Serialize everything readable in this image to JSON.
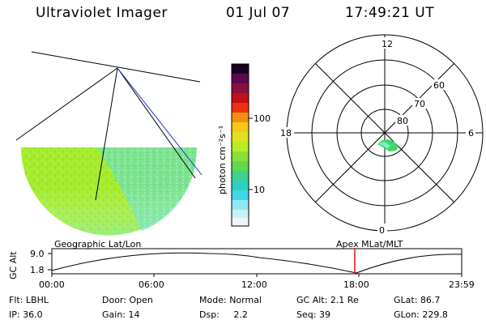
{
  "header": {
    "title": "Ultraviolet Imager",
    "date": "01 Jul 07",
    "time": "17:49:21 UT"
  },
  "colorbar": {
    "unit_label": "photon cm⁻²s⁻¹",
    "ticks": [
      "100",
      "10"
    ]
  },
  "polar_plot": {
    "mlt_labels": {
      "top": "12",
      "bottom": "0",
      "left": "18",
      "right": "6"
    },
    "lat_labels": [
      "60",
      "70",
      "80"
    ]
  },
  "timeline": {
    "left_label": "Geographic Lat/Lon",
    "right_label": "Apex MLat/MLT",
    "y_axis_label": "GC Alt",
    "y_ticks": [
      "9.0",
      "1.8"
    ],
    "x_ticks": [
      "00:00",
      "06:00",
      "12:00",
      "18:00",
      "23:59"
    ],
    "marker_time": "17:49",
    "marker_color": "#dd1111"
  },
  "status": {
    "filter": {
      "label": "Flt:",
      "value": "LBHL"
    },
    "ip": {
      "label": "IP:",
      "value": "36.0"
    },
    "door": {
      "label": "Door:",
      "value": "Open"
    },
    "gain": {
      "label": "Gain:",
      "value": "14"
    },
    "mode": {
      "label": "Mode:",
      "value": "Normal"
    },
    "dsp": {
      "label": "Dsp:",
      "value": "2.2"
    },
    "gc_alt": {
      "label": "GC Alt:",
      "value": "2.1 Re"
    },
    "seq": {
      "label": "Seq:",
      "value": "39"
    },
    "glat": {
      "label": "GLat:",
      "value": "86.7"
    },
    "glon": {
      "label": "GLon:",
      "value": "229.8"
    }
  }
}
